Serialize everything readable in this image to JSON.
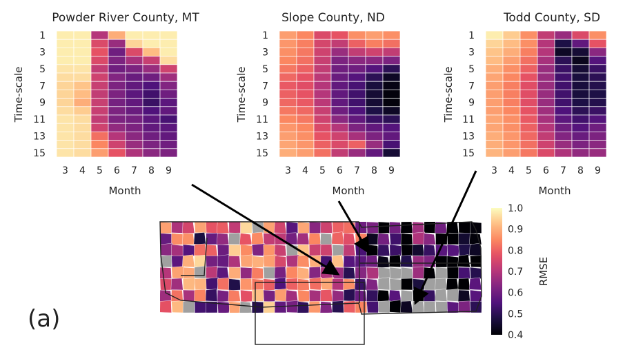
{
  "chart_data": [
    {
      "type": "heatmap",
      "title": "Powder River County, MT",
      "xlabel": "Month",
      "ylabel": "Time-scale",
      "x_ticks": [
        "3",
        "4",
        "5",
        "6",
        "7",
        "8",
        "9"
      ],
      "y_ticks": [
        "1",
        "3",
        "5",
        "7",
        "9",
        "11",
        "13",
        "15"
      ],
      "x": [
        3,
        4,
        5,
        6,
        7,
        8,
        9
      ],
      "y": [
        1,
        2,
        3,
        4,
        5,
        6,
        7,
        8,
        9,
        10,
        11,
        12,
        13,
        14,
        15
      ],
      "values": [
        [
          0.98,
          0.98,
          0.7,
          0.9,
          0.98,
          0.98,
          0.98
        ],
        [
          0.98,
          0.98,
          0.76,
          0.66,
          0.95,
          0.98,
          0.98
        ],
        [
          0.98,
          0.98,
          0.78,
          0.6,
          0.76,
          0.92,
          0.98
        ],
        [
          0.98,
          0.98,
          0.76,
          0.62,
          0.68,
          0.73,
          0.96
        ],
        [
          0.97,
          0.97,
          0.72,
          0.6,
          0.62,
          0.66,
          0.74
        ],
        [
          0.96,
          0.96,
          0.74,
          0.63,
          0.59,
          0.6,
          0.67
        ],
        [
          0.95,
          0.93,
          0.73,
          0.62,
          0.58,
          0.55,
          0.63
        ],
        [
          0.95,
          0.92,
          0.72,
          0.62,
          0.57,
          0.53,
          0.6
        ],
        [
          0.95,
          0.9,
          0.73,
          0.61,
          0.58,
          0.52,
          0.57
        ],
        [
          0.96,
          0.94,
          0.73,
          0.62,
          0.59,
          0.55,
          0.58
        ],
        [
          0.97,
          0.96,
          0.72,
          0.62,
          0.61,
          0.57,
          0.54
        ],
        [
          0.97,
          0.96,
          0.74,
          0.65,
          0.62,
          0.58,
          0.57
        ],
        [
          0.97,
          0.96,
          0.82,
          0.7,
          0.64,
          0.6,
          0.58
        ],
        [
          0.97,
          0.96,
          0.85,
          0.74,
          0.66,
          0.62,
          0.6
        ],
        [
          0.97,
          0.96,
          0.88,
          0.78,
          0.69,
          0.64,
          0.62
        ]
      ],
      "clim": [
        0.4,
        1.0
      ]
    },
    {
      "type": "heatmap",
      "title": "Slope County, ND",
      "xlabel": "Month",
      "ylabel": "Time-scale",
      "x_ticks": [
        "3",
        "4",
        "5",
        "6",
        "7",
        "8",
        "9"
      ],
      "y_ticks": [
        "1",
        "3",
        "5",
        "7",
        "9",
        "11",
        "13",
        "15"
      ],
      "x": [
        3,
        4,
        5,
        6,
        7,
        8,
        9
      ],
      "y": [
        1,
        2,
        3,
        4,
        5,
        6,
        7,
        8,
        9,
        10,
        11,
        12,
        13,
        14,
        15
      ],
      "values": [
        [
          0.88,
          0.85,
          0.76,
          0.78,
          0.86,
          0.88,
          0.86
        ],
        [
          0.87,
          0.84,
          0.75,
          0.72,
          0.8,
          0.84,
          0.82
        ],
        [
          0.86,
          0.83,
          0.74,
          0.66,
          0.72,
          0.74,
          0.72
        ],
        [
          0.85,
          0.82,
          0.73,
          0.62,
          0.64,
          0.64,
          0.62
        ],
        [
          0.83,
          0.8,
          0.72,
          0.6,
          0.6,
          0.56,
          0.5
        ],
        [
          0.81,
          0.78,
          0.71,
          0.59,
          0.56,
          0.5,
          0.44
        ],
        [
          0.79,
          0.77,
          0.7,
          0.58,
          0.54,
          0.47,
          0.42
        ],
        [
          0.8,
          0.78,
          0.7,
          0.58,
          0.53,
          0.46,
          0.41
        ],
        [
          0.81,
          0.79,
          0.71,
          0.58,
          0.53,
          0.46,
          0.41
        ],
        [
          0.83,
          0.81,
          0.73,
          0.6,
          0.55,
          0.48,
          0.44
        ],
        [
          0.85,
          0.83,
          0.74,
          0.64,
          0.58,
          0.52,
          0.5
        ],
        [
          0.87,
          0.85,
          0.76,
          0.7,
          0.62,
          0.58,
          0.56
        ],
        [
          0.88,
          0.86,
          0.78,
          0.74,
          0.68,
          0.62,
          0.58
        ],
        [
          0.89,
          0.87,
          0.8,
          0.76,
          0.8,
          0.66,
          0.54
        ],
        [
          0.9,
          0.88,
          0.82,
          0.72,
          0.66,
          0.58,
          0.46
        ]
      ],
      "clim": [
        0.4,
        1.0
      ]
    },
    {
      "type": "heatmap",
      "title": "Todd County, SD",
      "xlabel": "Month",
      "ylabel": "Time-scale",
      "x_ticks": [
        "3",
        "4",
        "5",
        "6",
        "7",
        "8",
        "9"
      ],
      "y_ticks": [
        "1",
        "3",
        "5",
        "7",
        "9",
        "11",
        "13",
        "15"
      ],
      "x": [
        3,
        4,
        5,
        6,
        7,
        8,
        9
      ],
      "y": [
        1,
        2,
        3,
        4,
        5,
        6,
        7,
        8,
        9,
        10,
        11,
        12,
        13,
        14,
        15
      ],
      "values": [
        [
          0.98,
          0.94,
          0.86,
          0.72,
          0.66,
          0.76,
          0.86
        ],
        [
          0.95,
          0.92,
          0.86,
          0.7,
          0.48,
          0.58,
          0.78
        ],
        [
          0.93,
          0.9,
          0.84,
          0.7,
          0.44,
          0.46,
          0.64
        ],
        [
          0.92,
          0.88,
          0.82,
          0.68,
          0.5,
          0.43,
          0.56
        ],
        [
          0.9,
          0.86,
          0.8,
          0.66,
          0.52,
          0.46,
          0.52
        ],
        [
          0.89,
          0.85,
          0.78,
          0.66,
          0.53,
          0.47,
          0.5
        ],
        [
          0.88,
          0.84,
          0.77,
          0.66,
          0.53,
          0.47,
          0.49
        ],
        [
          0.88,
          0.84,
          0.77,
          0.66,
          0.53,
          0.47,
          0.48
        ],
        [
          0.88,
          0.84,
          0.77,
          0.66,
          0.53,
          0.48,
          0.49
        ],
        [
          0.88,
          0.85,
          0.78,
          0.67,
          0.55,
          0.5,
          0.52
        ],
        [
          0.89,
          0.86,
          0.79,
          0.68,
          0.57,
          0.53,
          0.56
        ],
        [
          0.89,
          0.86,
          0.8,
          0.7,
          0.6,
          0.56,
          0.6
        ],
        [
          0.9,
          0.87,
          0.81,
          0.72,
          0.63,
          0.59,
          0.62
        ],
        [
          0.9,
          0.87,
          0.82,
          0.74,
          0.66,
          0.62,
          0.64
        ],
        [
          0.91,
          0.88,
          0.83,
          0.76,
          0.69,
          0.65,
          0.66
        ]
      ],
      "clim": [
        0.4,
        1.0
      ]
    }
  ],
  "colorbar": {
    "label": "RMSE",
    "ticks": [
      "1.0",
      "0.9",
      "0.8",
      "0.7",
      "0.6",
      "0.5",
      "0.4"
    ],
    "range": [
      0.4,
      1.0
    ],
    "colormap": "magma"
  },
  "map": {
    "no_data_color": "#a0a0a0"
  },
  "panel_label": "(a)"
}
